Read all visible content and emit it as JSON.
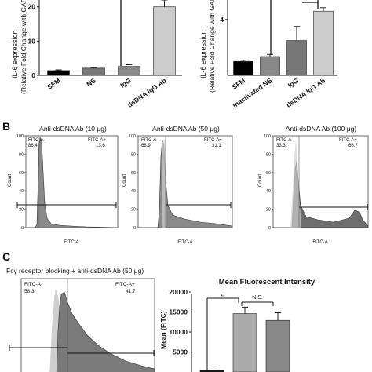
{
  "panel_labels": {
    "b": "B",
    "c": "C"
  },
  "chart_data": [
    {
      "type": "bar",
      "id": "A-left",
      "ylabel": "IL-6 expression",
      "ylabel2": "(Relative Fold Change with GAPDH)",
      "categories": [
        "SFM",
        "NS",
        "IgG",
        "dsDNA IgG Ab"
      ],
      "values": [
        1.4,
        2.1,
        2.6,
        20.0
      ],
      "errors": [
        0.2,
        0.2,
        0.5,
        2.0
      ],
      "colors": [
        "#000000",
        "#777777",
        "#888888",
        "#cccccc"
      ],
      "ylim": [
        0,
        22
      ],
      "yticks": [
        0,
        10,
        20
      ],
      "ytick_labels": [
        "0",
        "10",
        "20"
      ]
    },
    {
      "type": "bar",
      "id": "A-right",
      "ylabel": "IL-6 expression",
      "ylabel2": "(Relative Fold Change with GAPDH)",
      "categories": [
        "SFM",
        "Inactivated NS",
        "IgG",
        "dsDNA IgG Ab"
      ],
      "values": [
        1.0,
        1.35,
        2.5,
        4.6
      ],
      "errors": [
        0.08,
        0.15,
        1.0,
        0.25
      ],
      "colors": [
        "#000000",
        "#888888",
        "#777777",
        "#cccccc"
      ],
      "ylim": [
        0,
        5.4
      ],
      "yticks": [
        4
      ],
      "ytick_labels": [
        "4"
      ]
    },
    {
      "type": "histogram",
      "id": "B1",
      "title": "Anti-dsDNA Ab (10 μg)",
      "xlabel": "FITC-A",
      "ylabel": "Count",
      "yticks": [
        "0",
        "20",
        "40",
        "60",
        "80",
        "100"
      ],
      "gate_left_label": "FITC-A-",
      "gate_left_value": "86.4",
      "gate_right_label": "FITC-A+",
      "gate_right_value": "13.6"
    },
    {
      "type": "histogram",
      "id": "B2",
      "title": "Anti-dsDNA Ab (50 μg)",
      "xlabel": "FITC-A",
      "ylabel": "Count",
      "yticks": [
        "0",
        "20",
        "40",
        "60",
        "80",
        "100"
      ],
      "gate_left_label": "FITC-A-",
      "gate_left_value": "68.9",
      "gate_right_label": "FITC-A+",
      "gate_right_value": "31.1"
    },
    {
      "type": "histogram",
      "id": "B3",
      "title": "Anti-dsDNA Ab (100 μg)",
      "xlabel": "FITC-A",
      "ylabel": "Count",
      "yticks": [
        "0",
        "20",
        "40",
        "60",
        "80",
        "100"
      ],
      "gate_left_label": "FITC-A-",
      "gate_left_value": "33.3",
      "gate_right_label": "FITC-A+",
      "gate_right_value": "66.7"
    },
    {
      "type": "histogram",
      "id": "C-left",
      "title": "Fcγ receptor blocking + anti-dsDNA Ab (50 μg)",
      "gate_left_label": "FITC-A-",
      "gate_left_value": "58.3",
      "gate_right_label": "FITC-A+",
      "gate_right_value": "41.7"
    },
    {
      "type": "bar",
      "id": "C-right",
      "title": "Mean Fluorescent Intensity",
      "ylabel": "Mean (FITC)",
      "values": [
        350,
        14600,
        12900
      ],
      "errors": [
        100,
        1600,
        1900
      ],
      "colors": [
        "#111111",
        "#aaaaaa",
        "#888888"
      ],
      "ylim": [
        0,
        20000
      ],
      "yticks": [
        5000,
        10000,
        15000,
        20000
      ],
      "ytick_labels": [
        "5000",
        "10000",
        "15000",
        "20000"
      ],
      "annotations": [
        "**",
        "N.S."
      ]
    }
  ]
}
